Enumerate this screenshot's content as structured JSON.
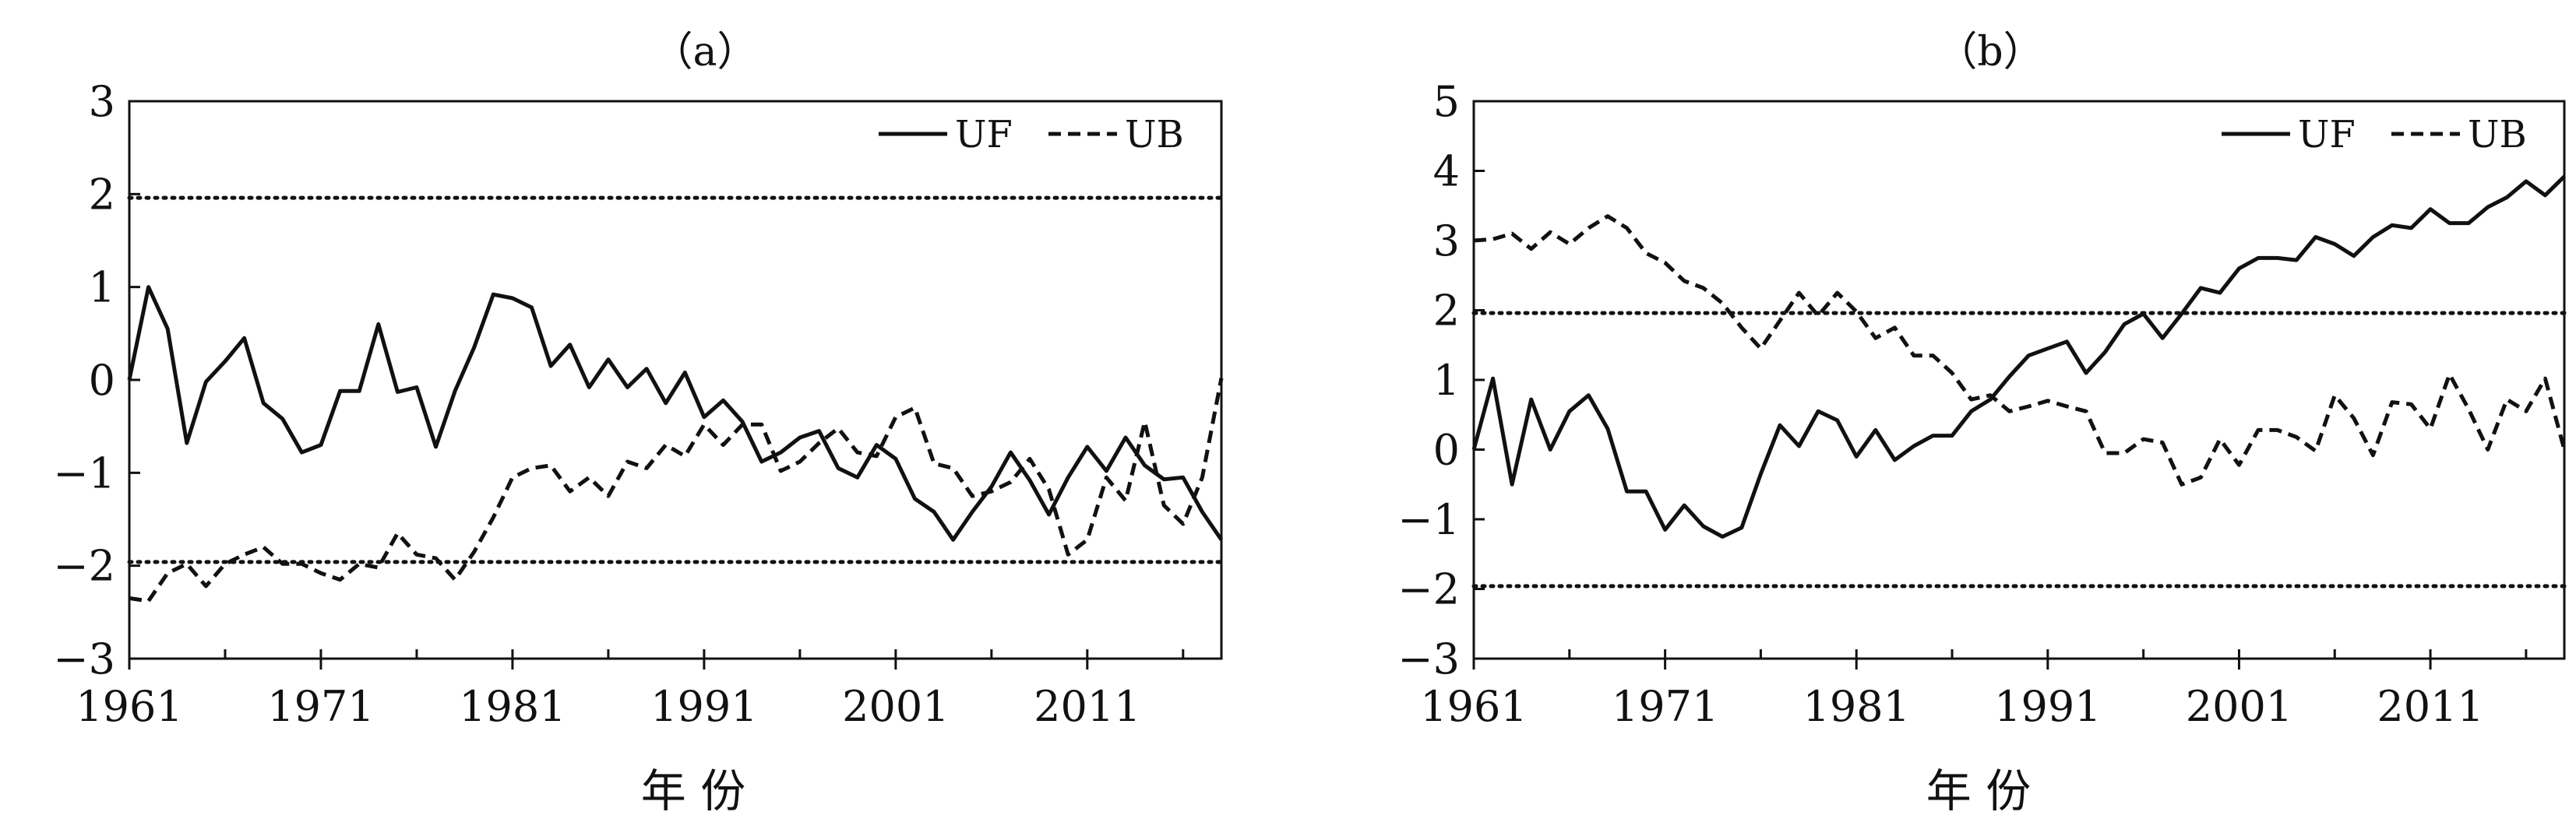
{
  "chart_data": [
    {
      "type": "line",
      "title": "（a）",
      "xlabel": "年 份",
      "ylabel": "",
      "xlim": [
        1961,
        2018
      ],
      "ylim": [
        -3,
        3
      ],
      "x_ticks": [
        1961,
        1971,
        1981,
        1991,
        2001,
        2011
      ],
      "y_ticks": [
        -3,
        -2,
        -1,
        0,
        1,
        2,
        3
      ],
      "y_tick_labels": [
        "−3",
        "−2",
        "−1",
        "0",
        "1",
        "2",
        "3"
      ],
      "confidence_lines": [
        1.96,
        -1.96
      ],
      "legend": {
        "placement": "top-right",
        "entries": [
          "UF",
          "UB"
        ]
      },
      "x": [
        1961,
        1962,
        1963,
        1964,
        1965,
        1966,
        1967,
        1968,
        1969,
        1970,
        1971,
        1972,
        1973,
        1974,
        1975,
        1976,
        1977,
        1978,
        1979,
        1980,
        1981,
        1982,
        1983,
        1984,
        1985,
        1986,
        1987,
        1988,
        1989,
        1990,
        1991,
        1992,
        1993,
        1994,
        1995,
        1996,
        1997,
        1998,
        1999,
        2000,
        2001,
        2002,
        2003,
        2004,
        2005,
        2006,
        2007,
        2008,
        2009,
        2010,
        2011,
        2012,
        2013,
        2014,
        2015,
        2016,
        2017,
        2018
      ],
      "series": [
        {
          "name": "UF",
          "style": "solid",
          "values": [
            0.0,
            1.0,
            0.55,
            -0.68,
            -0.02,
            0.2,
            0.45,
            -0.25,
            -0.42,
            -0.78,
            -0.7,
            -0.12,
            -0.12,
            0.6,
            -0.13,
            -0.08,
            -0.72,
            -0.12,
            0.35,
            0.92,
            0.88,
            0.78,
            0.15,
            0.38,
            -0.08,
            0.22,
            -0.08,
            0.12,
            -0.25,
            0.08,
            -0.4,
            -0.22,
            -0.45,
            -0.88,
            -0.78,
            -0.62,
            -0.55,
            -0.95,
            -1.05,
            -0.7,
            -0.85,
            -1.28,
            -1.42,
            -1.72,
            -1.42,
            -1.15,
            -0.78,
            -1.08,
            -1.45,
            -1.05,
            -0.72,
            -0.98,
            -0.62,
            -0.92,
            -1.07,
            -1.05,
            -1.42,
            -1.72
          ]
        },
        {
          "name": "UB",
          "style": "dashed",
          "values": [
            -2.35,
            -2.38,
            -2.08,
            -1.98,
            -2.22,
            -1.98,
            -1.88,
            -1.8,
            -1.98,
            -1.98,
            -2.08,
            -2.15,
            -1.98,
            -2.02,
            -1.65,
            -1.88,
            -1.92,
            -2.15,
            -1.85,
            -1.48,
            -1.05,
            -0.95,
            -0.92,
            -1.2,
            -1.05,
            -1.25,
            -0.88,
            -0.95,
            -0.7,
            -0.82,
            -0.48,
            -0.7,
            -0.48,
            -0.48,
            -0.98,
            -0.88,
            -0.68,
            -0.52,
            -0.78,
            -0.82,
            -0.4,
            -0.3,
            -0.9,
            -0.95,
            -1.25,
            -1.2,
            -1.1,
            -0.85,
            -1.18,
            -1.88,
            -1.72,
            -1.05,
            -1.3,
            -0.45,
            -1.35,
            -1.55,
            -1.05,
            0.02
          ]
        }
      ]
    },
    {
      "type": "line",
      "title": "（b）",
      "xlabel": "年 份",
      "ylabel": "",
      "xlim": [
        1961,
        2018
      ],
      "ylim": [
        -3,
        5
      ],
      "x_ticks": [
        1961,
        1971,
        1981,
        1991,
        2001,
        2011
      ],
      "y_ticks": [
        -3,
        -2,
        -1,
        0,
        1,
        2,
        3,
        4,
        5
      ],
      "y_tick_labels": [
        "−3",
        "−2",
        "−1",
        "0",
        "1",
        "2",
        "3",
        "4",
        "5"
      ],
      "confidence_lines": [
        1.96,
        -1.96
      ],
      "legend": {
        "placement": "top-right",
        "entries": [
          "UF",
          "UB"
        ]
      },
      "x": [
        1961,
        1962,
        1963,
        1964,
        1965,
        1966,
        1967,
        1968,
        1969,
        1970,
        1971,
        1972,
        1973,
        1974,
        1975,
        1976,
        1977,
        1978,
        1979,
        1980,
        1981,
        1982,
        1983,
        1984,
        1985,
        1986,
        1987,
        1988,
        1989,
        1990,
        1991,
        1992,
        1993,
        1994,
        1995,
        1996,
        1997,
        1998,
        1999,
        2000,
        2001,
        2002,
        2003,
        2004,
        2005,
        2006,
        2007,
        2008,
        2009,
        2010,
        2011,
        2012,
        2013,
        2014,
        2015,
        2016,
        2017,
        2018
      ],
      "series": [
        {
          "name": "UF",
          "style": "solid",
          "values": [
            0.0,
            1.02,
            -0.5,
            0.72,
            0.0,
            0.55,
            0.78,
            0.3,
            -0.6,
            -0.6,
            -1.15,
            -0.8,
            -1.1,
            -1.25,
            -1.12,
            -0.35,
            0.35,
            0.05,
            0.55,
            0.42,
            -0.1,
            0.28,
            -0.15,
            0.05,
            0.2,
            0.2,
            0.55,
            0.72,
            1.05,
            1.35,
            1.45,
            1.55,
            1.1,
            1.4,
            1.8,
            1.95,
            1.6,
            1.95,
            2.32,
            2.25,
            2.6,
            2.75,
            2.75,
            2.72,
            3.05,
            2.95,
            2.78,
            3.05,
            3.22,
            3.18,
            3.45,
            3.25,
            3.25,
            3.48,
            3.62,
            3.85,
            3.65,
            3.92
          ]
        },
        {
          "name": "UB",
          "style": "dashed",
          "values": [
            3.0,
            3.02,
            3.1,
            2.88,
            3.12,
            2.95,
            3.18,
            3.35,
            3.18,
            2.82,
            2.68,
            2.42,
            2.32,
            2.1,
            1.75,
            1.45,
            1.85,
            2.25,
            1.92,
            2.25,
            1.98,
            1.6,
            1.75,
            1.35,
            1.35,
            1.1,
            0.72,
            0.78,
            0.55,
            0.62,
            0.7,
            0.62,
            0.55,
            -0.05,
            -0.05,
            0.15,
            0.1,
            -0.5,
            -0.4,
            0.15,
            -0.22,
            0.28,
            0.28,
            0.18,
            -0.02,
            0.78,
            0.45,
            -0.08,
            0.68,
            0.65,
            0.3,
            1.08,
            0.58,
            0.0,
            0.72,
            0.55,
            1.02,
            0.0
          ]
        }
      ]
    }
  ]
}
